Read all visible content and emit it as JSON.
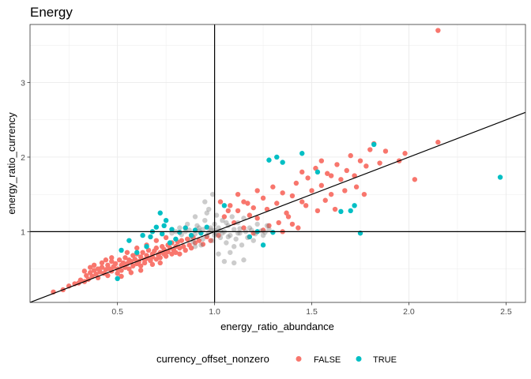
{
  "chart_data": {
    "type": "scatter",
    "title": "Energy",
    "xlabel": "energy_ratio_abundance",
    "ylabel": "energy_ratio_currency",
    "xlim": [
      0.05,
      2.6
    ],
    "ylim": [
      0.05,
      3.78
    ],
    "x_ticks": [
      0.5,
      1.0,
      1.5,
      2.0,
      2.5
    ],
    "x_tick_labels": [
      "0.5",
      "1.0",
      "1.5",
      "2.0",
      "2.5"
    ],
    "y_ticks": [
      1,
      2,
      3
    ],
    "y_tick_labels": [
      "1",
      "2",
      "3"
    ],
    "reference_lines": {
      "vline_x": 1,
      "hline_y": 1,
      "diagonal": {
        "slope": 1,
        "intercept": 0
      }
    },
    "grid": true,
    "legend": {
      "title": "currency_offset_nonzero",
      "position": "bottom",
      "entries": [
        {
          "label": "FALSE",
          "color": "#F8766D"
        },
        {
          "label": "TRUE",
          "color": "#00BFC4"
        }
      ]
    },
    "colors": {
      "FALSE": "#F8766D",
      "TRUE": "#00BFC4",
      "near_one": "#7f7f7f"
    },
    "series": [
      {
        "name": "FALSE",
        "points": [
          [
            0.17,
            0.19
          ],
          [
            0.22,
            0.22
          ],
          [
            0.25,
            0.27
          ],
          [
            0.28,
            0.3
          ],
          [
            0.3,
            0.31
          ],
          [
            0.31,
            0.35
          ],
          [
            0.33,
            0.33
          ],
          [
            0.34,
            0.41
          ],
          [
            0.35,
            0.36
          ],
          [
            0.36,
            0.45
          ],
          [
            0.37,
            0.4
          ],
          [
            0.38,
            0.48
          ],
          [
            0.38,
            0.55
          ],
          [
            0.39,
            0.43
          ],
          [
            0.4,
            0.38
          ],
          [
            0.4,
            0.5
          ],
          [
            0.41,
            0.46
          ],
          [
            0.42,
            0.52
          ],
          [
            0.42,
            0.58
          ],
          [
            0.43,
            0.44
          ],
          [
            0.44,
            0.49
          ],
          [
            0.45,
            0.55
          ],
          [
            0.45,
            0.41
          ],
          [
            0.46,
            0.5
          ],
          [
            0.47,
            0.47
          ],
          [
            0.47,
            0.6
          ],
          [
            0.48,
            0.53
          ],
          [
            0.49,
            0.57
          ],
          [
            0.5,
            0.5
          ],
          [
            0.5,
            0.44
          ],
          [
            0.51,
            0.62
          ],
          [
            0.52,
            0.55
          ],
          [
            0.52,
            0.48
          ],
          [
            0.53,
            0.58
          ],
          [
            0.54,
            0.52
          ],
          [
            0.54,
            0.65
          ],
          [
            0.55,
            0.57
          ],
          [
            0.56,
            0.5
          ],
          [
            0.56,
            0.62
          ],
          [
            0.57,
            0.6
          ],
          [
            0.58,
            0.54
          ],
          [
            0.58,
            0.68
          ],
          [
            0.59,
            0.63
          ],
          [
            0.6,
            0.57
          ],
          [
            0.6,
            0.7
          ],
          [
            0.61,
            0.6
          ],
          [
            0.62,
            0.66
          ],
          [
            0.62,
            0.54
          ],
          [
            0.63,
            0.72
          ],
          [
            0.64,
            0.62
          ],
          [
            0.64,
            0.58
          ],
          [
            0.65,
            0.68
          ],
          [
            0.66,
            0.64
          ],
          [
            0.66,
            0.75
          ],
          [
            0.67,
            0.61
          ],
          [
            0.68,
            0.7
          ],
          [
            0.68,
            0.66
          ],
          [
            0.69,
            0.74
          ],
          [
            0.7,
            0.63
          ],
          [
            0.7,
            0.78
          ],
          [
            0.71,
            0.69
          ],
          [
            0.72,
            0.72
          ],
          [
            0.72,
            0.65
          ],
          [
            0.73,
            0.8
          ],
          [
            0.74,
            0.7
          ],
          [
            0.74,
            0.76
          ],
          [
            0.75,
            0.67
          ],
          [
            0.76,
            0.82
          ],
          [
            0.76,
            0.73
          ],
          [
            0.77,
            0.78
          ],
          [
            0.78,
            0.7
          ],
          [
            0.78,
            0.85
          ],
          [
            0.79,
            0.75
          ],
          [
            0.8,
            0.8
          ],
          [
            0.8,
            0.72
          ],
          [
            0.81,
            0.86
          ],
          [
            0.82,
            0.78
          ],
          [
            0.82,
            0.7
          ],
          [
            0.83,
            0.88
          ],
          [
            0.84,
            0.8
          ],
          [
            0.85,
            0.75
          ],
          [
            0.86,
            0.9
          ],
          [
            0.87,
            0.82
          ],
          [
            0.88,
            0.78
          ],
          [
            0.89,
            0.92
          ],
          [
            0.9,
            0.85
          ],
          [
            0.92,
            0.88
          ],
          [
            0.94,
            0.83
          ],
          [
            0.96,
            0.93
          ],
          [
            0.98,
            0.88
          ],
          [
            0.55,
            0.72
          ],
          [
            0.6,
            0.78
          ],
          [
            0.65,
            0.82
          ],
          [
            0.7,
            0.88
          ],
          [
            0.75,
            0.92
          ],
          [
            0.52,
            0.4
          ],
          [
            0.57,
            0.45
          ],
          [
            0.62,
            0.48
          ],
          [
            0.68,
            0.56
          ],
          [
            0.72,
            0.58
          ],
          [
            0.47,
            0.65
          ],
          [
            0.44,
            0.62
          ],
          [
            0.36,
            0.52
          ],
          [
            0.33,
            0.47
          ],
          [
            1.02,
            0.95
          ],
          [
            1.05,
            1.2
          ],
          [
            1.08,
            1.35
          ],
          [
            1.1,
            1.12
          ],
          [
            1.12,
            1.28
          ],
          [
            1.15,
            1.4
          ],
          [
            1.18,
            1.22
          ],
          [
            1.2,
            1.32
          ],
          [
            1.22,
            1.18
          ],
          [
            1.25,
            1.45
          ],
          [
            1.27,
            1.3
          ],
          [
            1.3,
            1.6
          ],
          [
            1.32,
            1.38
          ],
          [
            1.35,
            1.52
          ],
          [
            1.37,
            1.25
          ],
          [
            1.4,
            1.48
          ],
          [
            1.42,
            1.65
          ],
          [
            1.45,
            1.4
          ],
          [
            1.48,
            1.72
          ],
          [
            1.5,
            1.55
          ],
          [
            1.52,
            1.85
          ],
          [
            1.55,
            1.62
          ],
          [
            1.58,
            1.78
          ],
          [
            1.6,
            1.5
          ],
          [
            1.63,
            1.9
          ],
          [
            1.65,
            1.7
          ],
          [
            1.68,
            1.82
          ],
          [
            1.7,
            2.02
          ],
          [
            1.72,
            1.75
          ],
          [
            1.75,
            1.95
          ],
          [
            1.78,
            1.88
          ],
          [
            1.8,
            2.1
          ],
          [
            1.82,
            2.18
          ],
          [
            1.85,
            1.92
          ],
          [
            1.88,
            2.08
          ],
          [
            1.95,
            1.95
          ],
          [
            1.98,
            2.05
          ],
          [
            2.03,
            1.7
          ],
          [
            2.15,
            2.2
          ],
          [
            2.15,
            3.7
          ],
          [
            1.15,
            1.05
          ],
          [
            1.2,
            0.98
          ],
          [
            1.28,
            1.08
          ],
          [
            1.33,
            1.12
          ],
          [
            1.38,
            1.2
          ],
          [
            1.43,
            1.05
          ],
          [
            1.47,
            1.35
          ],
          [
            1.53,
            1.28
          ],
          [
            1.57,
            1.42
          ],
          [
            1.62,
            1.3
          ],
          [
            1.67,
            1.55
          ],
          [
            1.73,
            1.6
          ],
          [
            1.77,
            1.5
          ],
          [
            1.35,
            1.0
          ],
          [
            1.4,
            1.1
          ],
          [
            1.25,
            1.02
          ],
          [
            1.07,
            1.28
          ],
          [
            1.03,
            1.4
          ],
          [
            1.12,
            1.5
          ],
          [
            1.17,
            1.38
          ],
          [
            1.22,
            1.55
          ],
          [
            1.45,
            1.8
          ],
          [
            1.55,
            1.95
          ],
          [
            1.6,
            1.75
          ]
        ]
      },
      {
        "name": "TRUE",
        "points": [
          [
            0.5,
            0.37
          ],
          [
            0.52,
            0.75
          ],
          [
            0.56,
            0.88
          ],
          [
            0.6,
            0.72
          ],
          [
            0.63,
            0.95
          ],
          [
            0.65,
            0.8
          ],
          [
            0.68,
            1.0
          ],
          [
            0.7,
            1.06
          ],
          [
            0.72,
            1.25
          ],
          [
            0.73,
            0.97
          ],
          [
            0.75,
            1.15
          ],
          [
            0.77,
            0.85
          ],
          [
            0.78,
            1.03
          ],
          [
            0.8,
            0.9
          ],
          [
            0.82,
            0.99
          ],
          [
            0.85,
            1.05
          ],
          [
            0.88,
            0.95
          ],
          [
            0.9,
            1.02
          ],
          [
            0.93,
            0.98
          ],
          [
            0.96,
            1.06
          ],
          [
            0.74,
            1.08
          ],
          [
            0.67,
            0.93
          ],
          [
            1.05,
            1.35
          ],
          [
            1.18,
            0.93
          ],
          [
            1.22,
            1.0
          ],
          [
            1.25,
            0.82
          ],
          [
            1.28,
            1.96
          ],
          [
            1.3,
            0.99
          ],
          [
            1.32,
            2.0
          ],
          [
            1.35,
            1.93
          ],
          [
            1.45,
            2.05
          ],
          [
            1.53,
            1.8
          ],
          [
            1.65,
            1.27
          ],
          [
            1.7,
            1.28
          ],
          [
            1.72,
            1.35
          ],
          [
            1.75,
            0.98
          ],
          [
            1.82,
            2.17
          ],
          [
            2.47,
            1.73
          ]
        ]
      },
      {
        "name": "near_one",
        "points": [
          [
            0.83,
            0.96
          ],
          [
            0.86,
            1.1
          ],
          [
            0.88,
            0.9
          ],
          [
            0.9,
            1.2
          ],
          [
            0.92,
            1.05
          ],
          [
            0.93,
            0.82
          ],
          [
            0.95,
            1.15
          ],
          [
            0.96,
            0.95
          ],
          [
            0.97,
            1.3
          ],
          [
            0.98,
            1.02
          ],
          [
            0.99,
            0.88
          ],
          [
            1.0,
            1.1
          ],
          [
            1.0,
            0.95
          ],
          [
            1.01,
            1.22
          ],
          [
            1.02,
            1.05
          ],
          [
            1.03,
            0.92
          ],
          [
            1.04,
            1.15
          ],
          [
            1.05,
            1.0
          ],
          [
            1.06,
            0.85
          ],
          [
            1.07,
            1.08
          ],
          [
            1.08,
            0.95
          ],
          [
            1.09,
            1.2
          ],
          [
            1.1,
            1.03
          ],
          [
            1.11,
            0.9
          ],
          [
            1.12,
            1.12
          ],
          [
            1.13,
            0.98
          ],
          [
            1.14,
            0.82
          ],
          [
            1.15,
            1.18
          ],
          [
            1.17,
            0.92
          ],
          [
            1.18,
            1.05
          ],
          [
            1.2,
            0.88
          ],
          [
            1.22,
            1.1
          ],
          [
            1.25,
            0.95
          ],
          [
            1.27,
            1.08
          ],
          [
            0.9,
            0.8
          ],
          [
            0.95,
            1.4
          ],
          [
            0.99,
            1.5
          ],
          [
            1.02,
            0.7
          ],
          [
            1.05,
            0.6
          ],
          [
            1.1,
            0.58
          ],
          [
            1.15,
            0.62
          ],
          [
            1.08,
            0.72
          ],
          [
            0.96,
            1.25
          ],
          [
            0.94,
            1.03
          ],
          [
            0.85,
            1.0
          ],
          [
            0.87,
            1.02
          ],
          [
            0.82,
            1.05
          ],
          [
            0.8,
            1.0
          ],
          [
            0.78,
            0.98
          ],
          [
            1.0,
            1.02
          ],
          [
            1.0,
            0.99
          ],
          [
            1.01,
            0.97
          ],
          [
            1.03,
            1.01
          ],
          [
            1.04,
            0.98
          ],
          [
            0.98,
            1.05
          ],
          [
            0.97,
            0.99
          ],
          [
            1.12,
            0.98
          ],
          [
            1.13,
            1.04
          ],
          [
            1.16,
            1.0
          ],
          [
            1.19,
            1.02
          ],
          [
            1.21,
            0.97
          ],
          [
            1.24,
            1.01
          ],
          [
            1.26,
            0.99
          ],
          [
            1.28,
            1.03
          ],
          [
            0.9,
            0.97
          ],
          [
            0.92,
            1.01
          ],
          [
            0.91,
            1.08
          ],
          [
            1.06,
            1.12
          ],
          [
            1.07,
            0.93
          ],
          [
            0.89,
            0.86
          ],
          [
            1.1,
            0.8
          ],
          [
            0.94,
            0.9
          ]
        ]
      }
    ]
  }
}
